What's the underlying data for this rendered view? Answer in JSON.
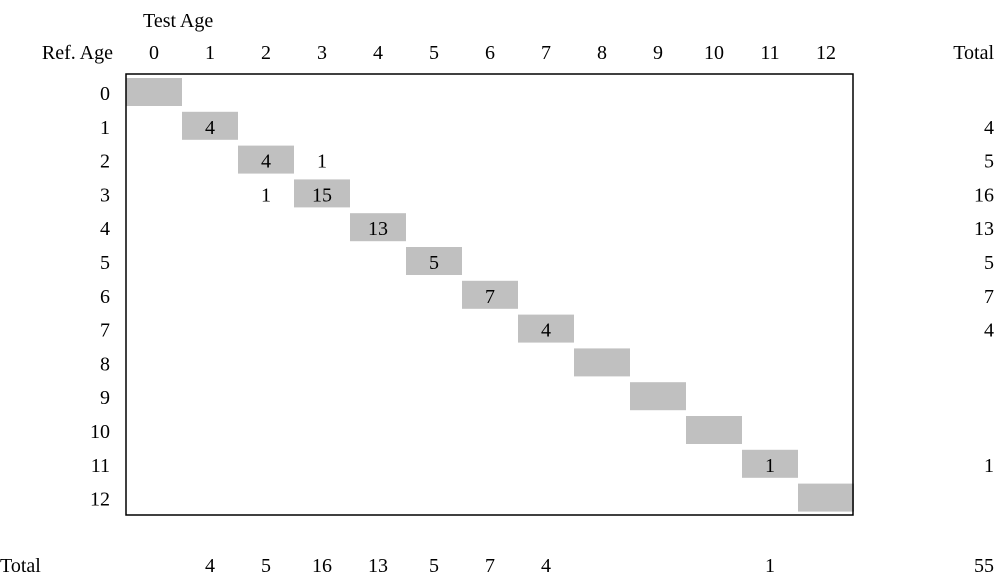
{
  "chart_data": {
    "type": "heatmap",
    "title": "",
    "xlabel": "Test Age",
    "ylabel": "Ref. Age",
    "x_categories": [
      "0",
      "1",
      "2",
      "3",
      "4",
      "5",
      "6",
      "7",
      "8",
      "9",
      "10",
      "11",
      "12"
    ],
    "y_categories": [
      "0",
      "1",
      "2",
      "3",
      "4",
      "5",
      "6",
      "7",
      "8",
      "9",
      "10",
      "11",
      "12"
    ],
    "cells": [
      {
        "ref": 1,
        "test": 1,
        "count": 4
      },
      {
        "ref": 2,
        "test": 2,
        "count": 4
      },
      {
        "ref": 2,
        "test": 3,
        "count": 1
      },
      {
        "ref": 3,
        "test": 2,
        "count": 1
      },
      {
        "ref": 3,
        "test": 3,
        "count": 15
      },
      {
        "ref": 4,
        "test": 4,
        "count": 13
      },
      {
        "ref": 5,
        "test": 5,
        "count": 5
      },
      {
        "ref": 6,
        "test": 6,
        "count": 7
      },
      {
        "ref": 7,
        "test": 7,
        "count": 4
      },
      {
        "ref": 11,
        "test": 11,
        "count": 1
      }
    ],
    "diagonal_shaded": true,
    "diagonal_color": "#c0c0c0",
    "row_totals_label": "Total",
    "row_totals": [
      "",
      "4",
      "5",
      "16",
      "13",
      "5",
      "7",
      "4",
      "",
      "",
      "",
      "1",
      ""
    ],
    "column_totals_label": "Total",
    "column_totals": [
      "",
      "4",
      "5",
      "16",
      "13",
      "5",
      "7",
      "4",
      "",
      "",
      "",
      "1",
      ""
    ],
    "grand_total": "55"
  }
}
